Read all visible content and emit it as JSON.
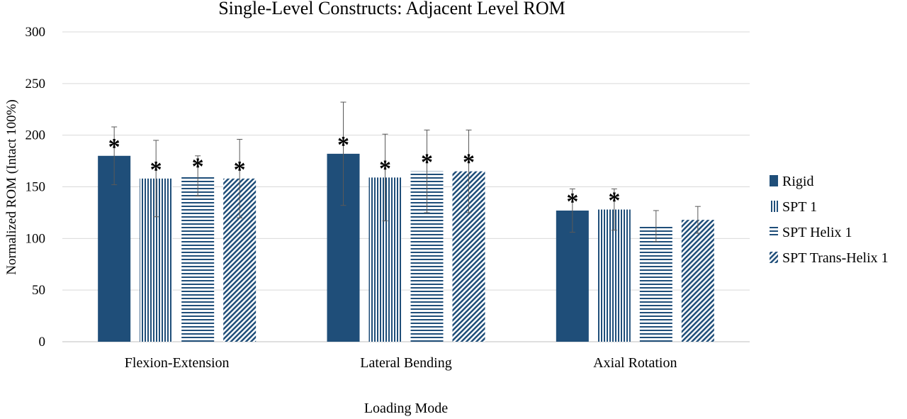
{
  "chart_data": {
    "type": "bar",
    "title": "Single-Level Constructs: Adjacent Level ROM",
    "xlabel": "Loading Mode",
    "ylabel": "Normalized ROM (Intact 100%)",
    "ylim": [
      0,
      300
    ],
    "yticks": [
      0,
      50,
      100,
      150,
      200,
      250,
      300
    ],
    "grid": true,
    "legend_position": "right",
    "categories": [
      "Flexion-Extension",
      "Lateral Bending",
      "Axial Rotation"
    ],
    "series": [
      {
        "name": "Rigid",
        "fill": "solid",
        "color": "#1f4e79",
        "values": [
          180,
          182,
          127
        ],
        "error": [
          [
            152,
            208
          ],
          [
            132,
            232
          ],
          [
            106,
            148
          ]
        ],
        "significance": [
          "*",
          "*",
          "*"
        ]
      },
      {
        "name": "SPT 1",
        "fill": "vertical-lines",
        "color": "#1f4e79",
        "values": [
          158,
          159,
          128
        ],
        "error": [
          [
            121,
            195
          ],
          [
            117,
            201
          ],
          [
            108,
            148
          ]
        ],
        "significance": [
          "*",
          "*",
          "*"
        ]
      },
      {
        "name": "SPT Helix 1",
        "fill": "horizontal-lines",
        "color": "#1f4e79",
        "values": [
          161,
          165,
          112
        ],
        "error": [
          [
            141,
            180
          ],
          [
            125,
            205
          ],
          [
            97,
            127
          ]
        ],
        "significance": [
          "*",
          "*",
          ""
        ]
      },
      {
        "name": "SPT Trans-Helix 1",
        "fill": "diagonal-lines",
        "color": "#1f4e79",
        "values": [
          158,
          165,
          118
        ],
        "error": [
          [
            120,
            196
          ],
          [
            125,
            205
          ],
          [
            105,
            131
          ]
        ],
        "significance": [
          "*",
          "*",
          ""
        ]
      }
    ]
  }
}
